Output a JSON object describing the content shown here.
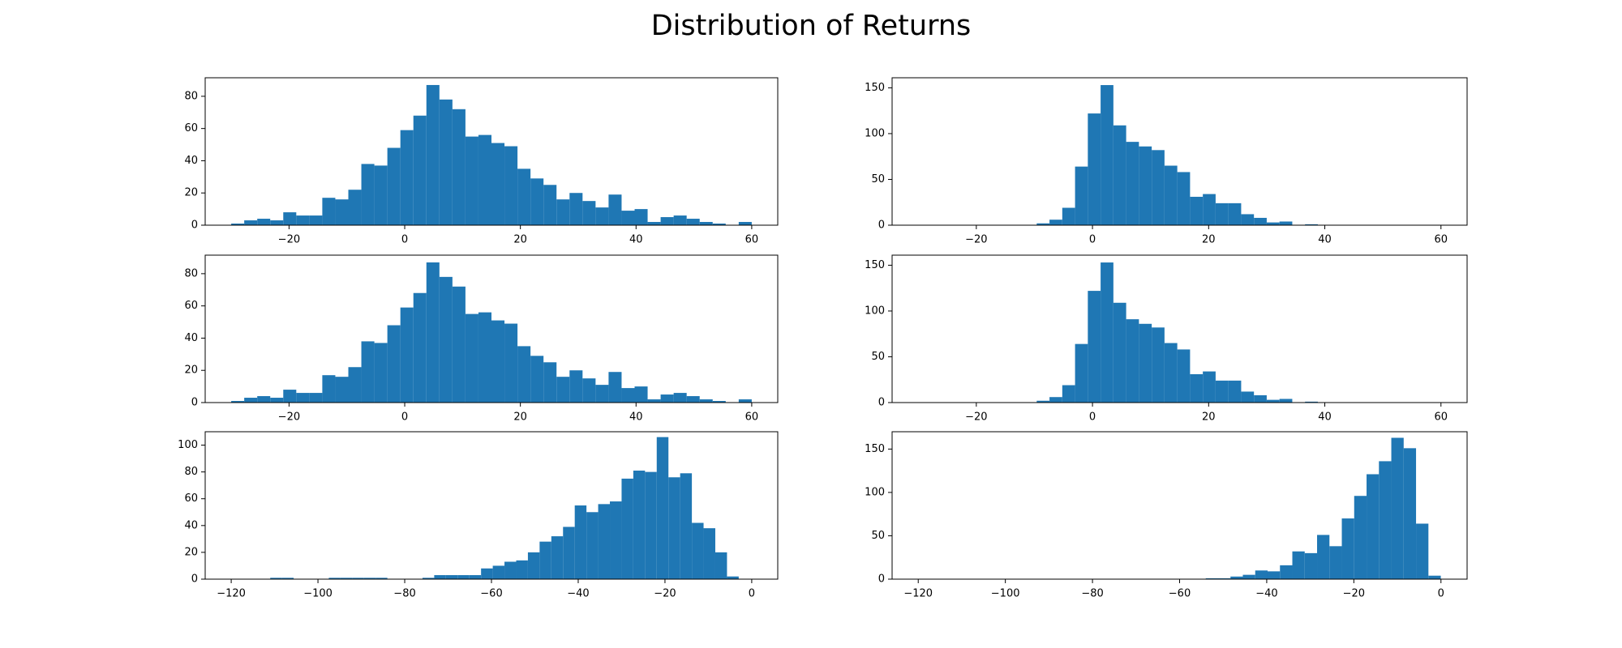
{
  "title": "Distribution of Returns",
  "chart_data": [
    {
      "type": "histogram",
      "color": "#1f77b4",
      "bins": [
        -30,
        -27.75,
        -25.5,
        -23.25,
        -21,
        -18.75,
        -16.5,
        -14.25,
        -12,
        -9.75,
        -7.5,
        -5.25,
        -3,
        -0.75,
        1.5,
        3.75,
        6,
        8.25,
        10.5,
        12.75,
        15,
        17.25,
        19.5,
        21.75,
        24,
        26.25,
        28.5,
        30.75,
        33,
        35.25,
        37.5,
        39.75,
        42,
        44.25,
        46.5,
        48.75,
        51,
        53.25,
        55.5,
        57.75,
        60
      ],
      "values": [
        1,
        3,
        4,
        3,
        8,
        6,
        6,
        17,
        16,
        22,
        38,
        37,
        48,
        59,
        68,
        87,
        78,
        72,
        55,
        56,
        51,
        49,
        35,
        29,
        25,
        16,
        20,
        15,
        11,
        19,
        9,
        10,
        2,
        5,
        6,
        4,
        2,
        1,
        0,
        2
      ],
      "xlim": [
        -34.5,
        64.5
      ],
      "ylim": [
        0,
        91.5
      ],
      "xticks": [
        {
          "value": -20,
          "label": "−20"
        },
        0,
        20,
        40,
        60
      ],
      "yticks": [
        0,
        20,
        40,
        60,
        80
      ]
    },
    {
      "type": "histogram",
      "color": "#1f77b4",
      "bins": [
        -9.6,
        -7.4,
        -5.2,
        -3,
        -0.8,
        1.4,
        3.6,
        5.8,
        8,
        10.2,
        12.4,
        14.6,
        16.8,
        19,
        21.2,
        23.4,
        25.6,
        27.8,
        30,
        32.2,
        34.4,
        36.6,
        38.8
      ],
      "values": [
        2,
        6,
        19,
        64,
        122,
        153,
        109,
        91,
        86,
        82,
        65,
        58,
        31,
        34,
        24,
        24,
        12,
        8,
        3,
        4,
        0,
        1
      ],
      "xlim": [
        -34.5,
        64.5
      ],
      "ylim": [
        0,
        161
      ],
      "xticks": [
        {
          "value": -20,
          "label": "−20"
        },
        0,
        20,
        40,
        60
      ],
      "yticks": [
        0,
        50,
        100,
        150
      ]
    },
    {
      "type": "histogram",
      "color": "#1f77b4",
      "bins": [
        -30,
        -27.75,
        -25.5,
        -23.25,
        -21,
        -18.75,
        -16.5,
        -14.25,
        -12,
        -9.75,
        -7.5,
        -5.25,
        -3,
        -0.75,
        1.5,
        3.75,
        6,
        8.25,
        10.5,
        12.75,
        15,
        17.25,
        19.5,
        21.75,
        24,
        26.25,
        28.5,
        30.75,
        33,
        35.25,
        37.5,
        39.75,
        42,
        44.25,
        46.5,
        48.75,
        51,
        53.25,
        55.5,
        57.75,
        60
      ],
      "values": [
        1,
        3,
        4,
        3,
        8,
        6,
        6,
        17,
        16,
        22,
        38,
        37,
        48,
        59,
        68,
        87,
        78,
        72,
        55,
        56,
        51,
        49,
        35,
        29,
        25,
        16,
        20,
        15,
        11,
        19,
        9,
        10,
        2,
        5,
        6,
        4,
        2,
        1,
        0,
        2
      ],
      "xlim": [
        -34.5,
        64.5
      ],
      "ylim": [
        0,
        91.5
      ],
      "xticks": [
        {
          "value": -20,
          "label": "−20"
        },
        0,
        20,
        40,
        60
      ],
      "yticks": [
        0,
        20,
        40,
        60,
        80
      ]
    },
    {
      "type": "histogram",
      "color": "#1f77b4",
      "bins": [
        -9.6,
        -7.4,
        -5.2,
        -3,
        -0.8,
        1.4,
        3.6,
        5.8,
        8,
        10.2,
        12.4,
        14.6,
        16.8,
        19,
        21.2,
        23.4,
        25.6,
        27.8,
        30,
        32.2,
        34.4,
        36.6,
        38.8
      ],
      "values": [
        2,
        6,
        19,
        64,
        122,
        153,
        109,
        91,
        86,
        82,
        65,
        58,
        31,
        34,
        24,
        24,
        12,
        8,
        3,
        4,
        0,
        1
      ],
      "xlim": [
        -34.5,
        64.5
      ],
      "ylim": [
        0,
        161
      ],
      "xticks": [
        {
          "value": -20,
          "label": "−20"
        },
        0,
        20,
        40,
        60
      ],
      "yticks": [
        0,
        50,
        100,
        150
      ]
    },
    {
      "type": "histogram",
      "color": "#1f77b4",
      "bins": [
        -111,
        -108.3,
        -105.6,
        -102.9,
        -100.2,
        -97.5,
        -94.8,
        -92.1,
        -89.4,
        -86.7,
        -84,
        -81.3,
        -78.6,
        -75.9,
        -73.2,
        -70.5,
        -67.8,
        -65.1,
        -62.4,
        -59.7,
        -57,
        -54.3,
        -51.6,
        -48.9,
        -46.2,
        -43.5,
        -40.8,
        -38.1,
        -35.4,
        -32.7,
        -30,
        -27.3,
        -24.6,
        -21.9,
        -19.2,
        -16.5,
        -13.8,
        -11.1,
        -8.4,
        -5.7,
        -3
      ],
      "values": [
        1,
        1,
        0,
        0,
        0,
        1,
        1,
        1,
        1,
        1,
        0,
        0,
        0,
        1,
        3,
        3,
        3,
        3,
        8,
        10,
        13,
        14,
        20,
        28,
        32,
        39,
        55,
        50,
        56,
        58,
        75,
        81,
        80,
        106,
        76,
        79,
        42,
        38,
        20,
        2
      ],
      "xlim": [
        -126,
        6
      ],
      "ylim": [
        0,
        110
      ],
      "xticks": [
        {
          "value": -120,
          "label": "−120"
        },
        {
          "value": -100,
          "label": "−100"
        },
        {
          "value": -80,
          "label": "−80"
        },
        {
          "value": -60,
          "label": "−60"
        },
        {
          "value": -40,
          "label": "−40"
        },
        {
          "value": -20,
          "label": "−20"
        },
        0
      ],
      "yticks": [
        0,
        20,
        40,
        60,
        80,
        100
      ]
    },
    {
      "type": "histogram",
      "color": "#1f77b4",
      "bins": [
        -54,
        -51.16,
        -48.32,
        -45.48,
        -42.64,
        -39.8,
        -36.96,
        -34.12,
        -31.28,
        -28.44,
        -25.6,
        -22.76,
        -19.92,
        -17.08,
        -14.24,
        -11.4,
        -8.56,
        -5.72,
        -2.88,
        -0.04
      ],
      "values": [
        1,
        1,
        3,
        5,
        10,
        9,
        16,
        32,
        30,
        51,
        38,
        70,
        96,
        121,
        136,
        163,
        151,
        64,
        4
      ],
      "xlim": [
        -126,
        6
      ],
      "ylim": [
        0,
        170
      ],
      "xticks": [
        {
          "value": -120,
          "label": "−120"
        },
        {
          "value": -100,
          "label": "−100"
        },
        {
          "value": -80,
          "label": "−80"
        },
        {
          "value": -60,
          "label": "−60"
        },
        {
          "value": -40,
          "label": "−40"
        },
        {
          "value": -20,
          "label": "−20"
        },
        0
      ],
      "yticks": [
        0,
        50,
        100,
        150
      ]
    }
  ]
}
